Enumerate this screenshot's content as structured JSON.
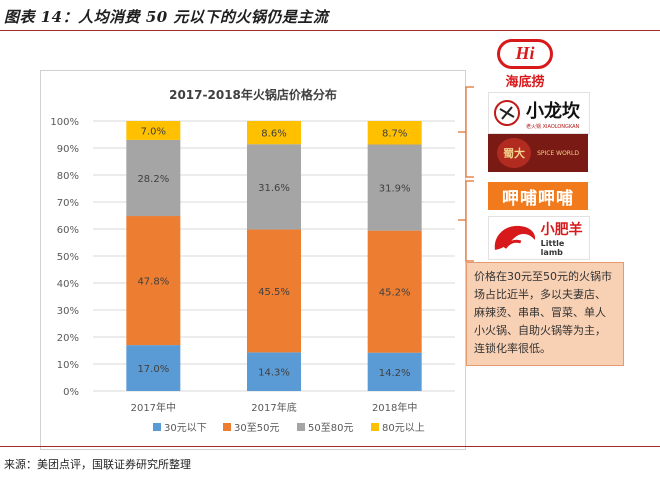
{
  "figure_title": "图表 14：人均消费 50 元以下的火锅仍是主流",
  "source": "来源：美团点评，国联证券研究所整理",
  "note": "价格在30元至50元的火锅市场占比近半，多以夫妻店、麻辣烫、串串、冒菜、单人小火锅、自助火锅等为主，连锁化率很低。",
  "logos": {
    "haidilao": {
      "mark": "Hi",
      "name": "海底捞",
      "color": "#d7191c"
    },
    "xiaolongkan": {
      "name": "小龙坎",
      "sub": "老火锅 XIAOLONGKAN"
    },
    "shuda": {
      "name": "蜀大",
      "sub": "SPICE WORLD"
    },
    "xiabuxiabu": {
      "name": "呷哺呷哺",
      "color": "#f07a1c"
    },
    "xiaofeiyang": {
      "name": "小肥羊",
      "sub": "Little lamb",
      "color": "#d7191c"
    }
  },
  "chart_data": {
    "type": "bar",
    "stacked": true,
    "title": "2017-2018年火锅店价格分布",
    "categories": [
      "2017年中",
      "2017年底",
      "2018年中"
    ],
    "series": [
      {
        "name": "30元以下",
        "color": "#5b9bd5",
        "values": [
          17.0,
          14.3,
          14.2
        ],
        "labels": [
          "17.0%",
          "14.3%",
          "14.2%"
        ]
      },
      {
        "name": "30至50元",
        "color": "#ed7d31",
        "values": [
          47.8,
          45.5,
          45.2
        ],
        "labels": [
          "47.8%",
          "45.5%",
          "45.2%"
        ]
      },
      {
        "name": "50至80元",
        "color": "#a5a5a5",
        "values": [
          28.2,
          31.6,
          31.9
        ],
        "labels": [
          "28.2%",
          "31.6%",
          "31.9%"
        ]
      },
      {
        "name": "80元以上",
        "color": "#ffc000",
        "values": [
          7.0,
          8.6,
          8.7
        ],
        "labels": [
          "7.0%",
          "8.6%",
          "8.7%"
        ]
      }
    ],
    "yticks": [
      "0%",
      "10%",
      "20%",
      "30%",
      "40%",
      "50%",
      "60%",
      "70%",
      "80%",
      "90%",
      "100%"
    ],
    "ylim": [
      0,
      100
    ],
    "grid": true,
    "legend": "bottom"
  }
}
